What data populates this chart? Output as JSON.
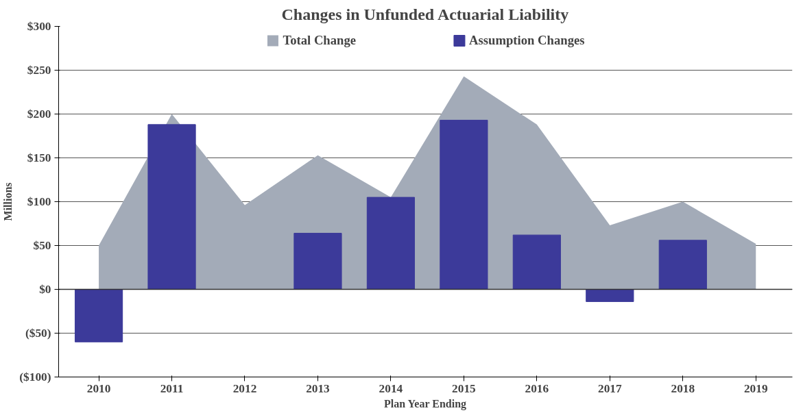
{
  "chart_data": {
    "type": "bar",
    "title": "Changes in Unfunded Actuarial Liability",
    "xlabel": "Plan Year Ending",
    "ylabel": "Millions",
    "categories": [
      "2010",
      "2011",
      "2012",
      "2013",
      "2014",
      "2015",
      "2016",
      "2017",
      "2018",
      "2019"
    ],
    "series": [
      {
        "name": "Total Change",
        "type": "area",
        "color": "#a3abb8",
        "values": [
          50,
          200,
          96,
          153,
          105,
          243,
          188,
          73,
          100,
          52
        ]
      },
      {
        "name": "Assumption Changes",
        "color": "#3c3a9a",
        "values": [
          -60,
          188,
          null,
          64,
          105,
          193,
          62,
          -14,
          56,
          null
        ]
      }
    ],
    "ylim": [
      -100,
      300
    ],
    "yticks": [
      {
        "value": -100,
        "label": "($100)"
      },
      {
        "value": -50,
        "label": "($50)"
      },
      {
        "value": 0,
        "label": "$0"
      },
      {
        "value": 50,
        "label": "$50"
      },
      {
        "value": 100,
        "label": "$100"
      },
      {
        "value": 150,
        "label": "$150"
      },
      {
        "value": 200,
        "label": "$200"
      },
      {
        "value": 250,
        "label": "$250"
      },
      {
        "value": 300,
        "label": "$300"
      }
    ],
    "grid": "y",
    "legend": "top"
  }
}
